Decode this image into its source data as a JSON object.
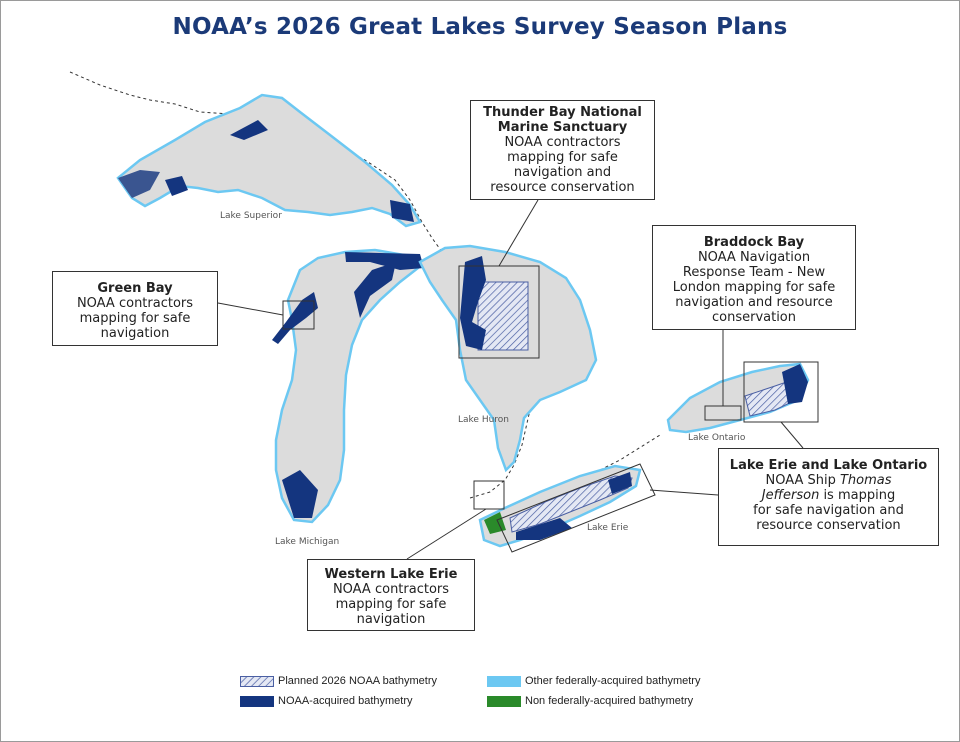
{
  "title": "NOAA’s 2026 Great Lakes Survey Season Plans",
  "lake_labels": {
    "superior": "Lake Superior",
    "michigan": "Lake Michigan",
    "huron": "Lake Huron",
    "erie": "Lake Erie",
    "ontario": "Lake Ontario"
  },
  "callouts": {
    "thunder_bay": {
      "head_line1": "Thunder Bay National",
      "head_line2": "Marine Sanctuary",
      "body_line1": "NOAA contractors",
      "body_line2": "mapping for safe",
      "body_line3": "navigation and",
      "body_line4": "resource conservation"
    },
    "green_bay": {
      "head": "Green Bay",
      "body_line1": "NOAA contractors",
      "body_line2": "mapping for safe",
      "body_line3": "navigation"
    },
    "braddock_bay": {
      "head": "Braddock Bay",
      "body_line1": "NOAA Navigation",
      "body_line2": "Response Team - New",
      "body_line3": "London mapping for safe",
      "body_line4": "navigation and resource",
      "body_line5": "conservation"
    },
    "erie_ontario": {
      "head": "Lake Erie and Lake Ontario",
      "body_pre": "NOAA Ship ",
      "body_italic1": "Thomas",
      "body_italic2": "Jefferson",
      "body_post": " is mapping",
      "body_line3": "for safe navigation and",
      "body_line4": "resource conservation"
    },
    "western_erie": {
      "head": "Western Lake Erie",
      "body_line1": "NOAA contractors",
      "body_line2": "mapping for safe",
      "body_line3": "navigation"
    }
  },
  "legend": {
    "planned": "Planned 2026 NOAA bathymetry",
    "noaa_acquired": "NOAA-acquired bathymetry",
    "other_federal": "Other federally-acquired bathymetry",
    "non_federal": "Non federally-acquired bathymetry"
  },
  "colors": {
    "title": "#1b3a78",
    "lake_fill": "#dcdcdc",
    "noaa_acquired": "#14357f",
    "other_federal": "#6cc8f2",
    "non_federal": "#2a8a2a",
    "planned_hatch": "#4a5fa3"
  }
}
